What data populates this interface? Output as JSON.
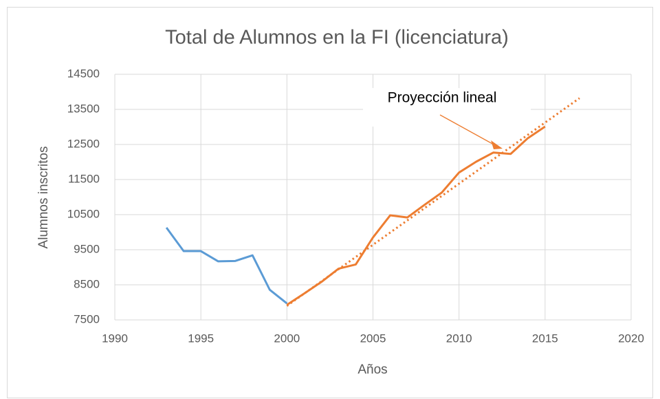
{
  "chart_data": {
    "type": "line",
    "title": "Total de Alumnos en la FI (licenciatura)",
    "x_label": "Años",
    "y_label": "Alumnos inscritos",
    "annotation": "Proyección lineal",
    "xlim": [
      1990,
      2020
    ],
    "xticks": [
      1990,
      1995,
      2000,
      2005,
      2010,
      2015,
      2020
    ],
    "ylim": [
      7500,
      14500
    ],
    "yticks": [
      7500,
      8500,
      9500,
      10500,
      11500,
      12500,
      13500,
      14500
    ],
    "grid": true,
    "series": [
      {
        "color": "#5b9bd5",
        "style": "solid",
        "x": [
          1993,
          1994,
          1995,
          1996,
          1997,
          1998,
          1999,
          2000
        ],
        "values": [
          10130,
          9460,
          9460,
          9170,
          9180,
          9340,
          8360,
          7970
        ]
      },
      {
        "color": "#ed7d31",
        "style": "solid",
        "x": [
          2000,
          2001,
          2002,
          2003,
          2004,
          2005,
          2006,
          2007,
          2008,
          2009,
          2010,
          2011,
          2012,
          2013,
          2014,
          2015
        ],
        "values": [
          7930,
          8250,
          8580,
          8960,
          9080,
          9850,
          10480,
          10420,
          10780,
          11130,
          11700,
          12010,
          12270,
          12230,
          12680,
          13010
        ]
      },
      {
        "color": "#ed7d31",
        "style": "dotted",
        "x": [
          2000,
          2017
        ],
        "values": [
          7900,
          13820
        ]
      }
    ]
  }
}
